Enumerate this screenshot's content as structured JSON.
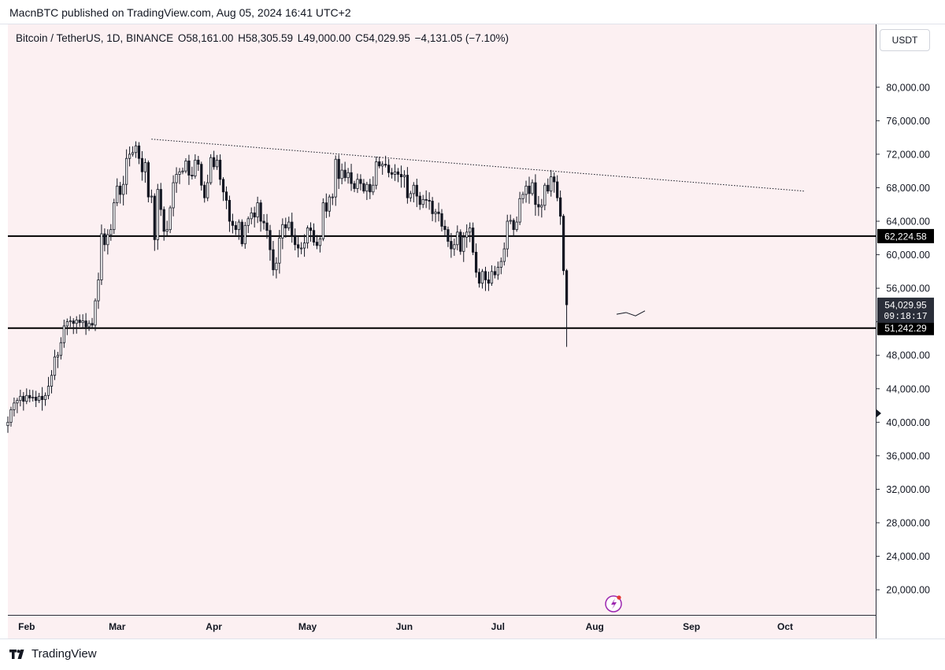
{
  "header": {
    "publisher_text": "MacnBTC published on TradingView.com, Aug 05, 2024 16:41 UTC+2"
  },
  "ohlc": {
    "symbol": "Bitcoin / TetherUS, 1D, BINANCE",
    "open": "O58,161.00",
    "high": "H58,305.59",
    "low": "L49,000.00",
    "close": "C54,029.95",
    "change": "−4,131.05 (−7.10%)"
  },
  "currency_button": "USDT",
  "footer": {
    "brand": "TradingView"
  },
  "colors": {
    "background": "#fcf0f2",
    "candle": "#131722",
    "axis": "#2a2e39"
  },
  "icons": [
    "tradingview-logo-icon",
    "lightning-event-icon",
    "crosshair-marker-icon"
  ],
  "chart_data": {
    "type": "candlestick",
    "symbol": "BTCUSDT",
    "timeframe": "1D",
    "ylim": [
      17000,
      87500
    ],
    "y_ticks": [
      20000,
      24000,
      28000,
      32000,
      36000,
      40000,
      44000,
      48000,
      52000,
      56000,
      60000,
      64000,
      68000,
      72000,
      76000,
      80000
    ],
    "y_tick_labels": [
      "20,000.00",
      "24,000.00",
      "28,000.00",
      "32,000.00",
      "36,000.00",
      "40,000.00",
      "44,000.00",
      "48,000.00",
      "52,000.00",
      "56,000.00",
      "60,000.00",
      "64,000.00",
      "68,000.00",
      "72,000.00",
      "76,000.00",
      "80,000.00"
    ],
    "x_range": [
      "2024-01-26",
      "2024-10-30"
    ],
    "x_ticks": [
      {
        "date": "2024-02-01",
        "label": "Feb"
      },
      {
        "date": "2024-03-01",
        "label": "Mar"
      },
      {
        "date": "2024-04-01",
        "label": "Apr"
      },
      {
        "date": "2024-05-01",
        "label": "May"
      },
      {
        "date": "2024-06-01",
        "label": "Jun"
      },
      {
        "date": "2024-07-01",
        "label": "Jul"
      },
      {
        "date": "2024-08-01",
        "label": "Aug"
      },
      {
        "date": "2024-09-01",
        "label": "Sep"
      },
      {
        "date": "2024-10-01",
        "label": "Oct"
      }
    ],
    "horizontal_levels": [
      {
        "value": 62224.58,
        "label": "62,224.58"
      },
      {
        "value": 51242.29,
        "label": "51,242.29"
      }
    ],
    "last_price": {
      "value": 54029.95,
      "label": "54,029.95",
      "countdown": "09:18:17"
    },
    "trendline": {
      "start": {
        "date": "2024-03-12",
        "value": 73800
      },
      "end": {
        "date": "2024-10-07",
        "value": 67600
      }
    },
    "price_path": {
      "date": "2024-08-08",
      "values": [
        52900,
        53100,
        52700,
        53300
      ]
    },
    "close_series": {
      "start_date": "2024-01-26",
      "values": [
        40000,
        41500,
        42300,
        42600,
        43100,
        42500,
        43200,
        42900,
        43000,
        42600,
        43100,
        42700,
        43200,
        44300,
        45600,
        47800,
        48000,
        49500,
        51500,
        52000,
        52100,
        51800,
        52200,
        51900,
        52100,
        51400,
        51800,
        51600,
        54500,
        57000,
        62500,
        61200,
        62400,
        63000,
        66200,
        68200,
        67200,
        68400,
        71500,
        72000,
        72200,
        73000,
        71500,
        69900,
        71000,
        66900,
        67000,
        61800,
        67800,
        65400,
        62800,
        63000,
        65600,
        68600,
        69600,
        69900,
        70000,
        71200,
        69500,
        69400,
        71300,
        70800,
        68300,
        66800,
        68600,
        71600,
        70500,
        71300,
        69000,
        67500,
        66500,
        64000,
        63500,
        63000,
        63900,
        61300,
        63500,
        64300,
        65000,
        64500,
        66200,
        64000,
        63800,
        62900,
        60600,
        58200,
        59000,
        62000,
        63600,
        63200,
        63900,
        62300,
        61200,
        60800,
        60800,
        61400,
        63200,
        62900,
        61500,
        61100,
        61900,
        66200,
        65200,
        66900,
        66900,
        71400,
        69100,
        70100,
        69200,
        69800,
        68500,
        67900,
        69000,
        68500,
        67600,
        68400,
        67500,
        68300,
        71100,
        70600,
        70800,
        70700,
        69800,
        69600,
        69900,
        69600,
        69300,
        69500,
        66800,
        67300,
        68300,
        67000,
        66000,
        66600,
        66500,
        66400,
        64900,
        65100,
        64900,
        63400,
        63000,
        61600,
        60700,
        61200,
        62700,
        60400,
        62100,
        62700,
        63200,
        60300,
        57900,
        56600,
        58000,
        57000,
        56600,
        58000,
        57600,
        58500,
        59200,
        60700,
        64000,
        64100,
        63000,
        63900,
        66700,
        67200,
        68200,
        67300,
        68600,
        66000,
        65700,
        65900,
        68300,
        67600,
        69300,
        68700,
        66800,
        64600,
        58100,
        54030
      ]
    }
  }
}
